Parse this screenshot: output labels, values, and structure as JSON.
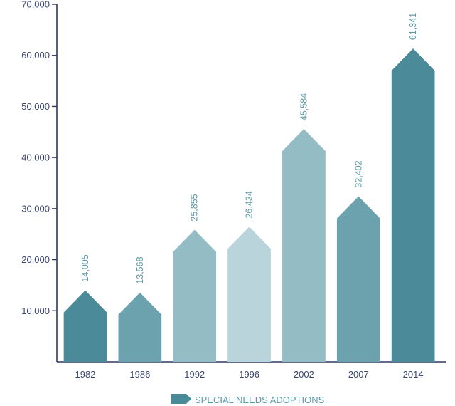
{
  "chart_data": {
    "type": "bar",
    "categories": [
      "1982",
      "1986",
      "1992",
      "1996",
      "2002",
      "2007",
      "2014"
    ],
    "values": [
      14005,
      13568,
      25855,
      26434,
      45584,
      32402,
      61341
    ],
    "data_labels": [
      "14,005",
      "13,568",
      "25,855",
      "26,434",
      "45,584",
      "32,402",
      "61,341"
    ],
    "ylim": [
      0,
      70000
    ],
    "yticks": [
      10000,
      20000,
      30000,
      40000,
      50000,
      60000,
      70000
    ],
    "ytick_labels": [
      "10,000",
      "20,000",
      "30,000",
      "40,000",
      "50,000",
      "60,000",
      "70,000"
    ],
    "series": [
      {
        "name": "SPECIAL NEEDS ADOPTIONS",
        "values": [
          14005,
          13568,
          25855,
          26434,
          45584,
          32402,
          61341
        ]
      }
    ],
    "bar_colors": [
      "#4a8a99",
      "#6ca2ad",
      "#93bcc5",
      "#b9d4da",
      "#93bcc5",
      "#6ca2ad",
      "#4a8a99"
    ],
    "legend": {
      "label": "SPECIAL NEEDS ADOPTIONS",
      "position": "bottom-center",
      "color": "#4a8a99"
    },
    "grid": false,
    "title": "",
    "xlabel": "",
    "ylabel": ""
  }
}
